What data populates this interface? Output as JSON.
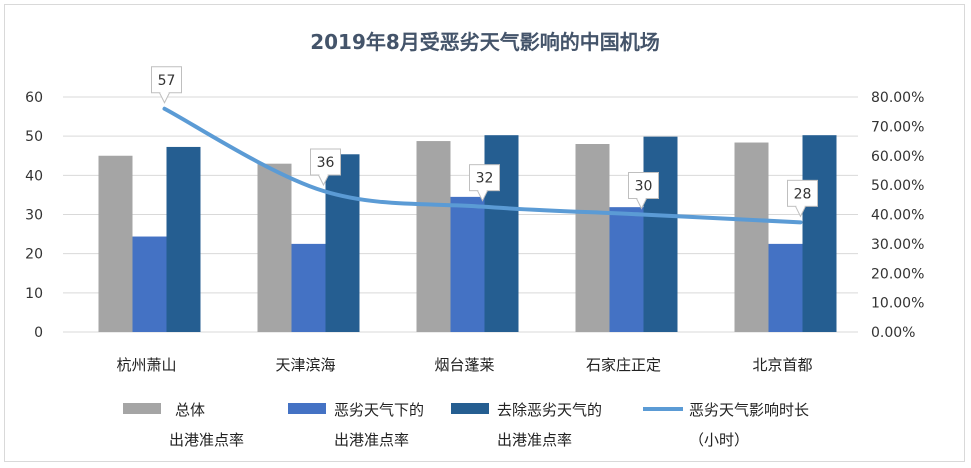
{
  "chart_data": {
    "type": "bar",
    "title": "2019年8月受恶劣天气影响的中国机场",
    "categories": [
      "杭州萧山",
      "天津滨海",
      "烟台蓬莱",
      "石家庄正定",
      "北京首都"
    ],
    "y_left": {
      "min": 0,
      "max": 60,
      "ticks": [
        0,
        10,
        20,
        30,
        40,
        50,
        60
      ]
    },
    "y_right": {
      "min": 0,
      "max": 0.8,
      "ticks": [
        "0.00%",
        "10.00%",
        "20.00%",
        "30.00%",
        "40.00%",
        "50.00%",
        "60.00%",
        "70.00%",
        "80.00%"
      ]
    },
    "series": [
      {
        "name_lines": [
          "总体",
          "出港准点率"
        ],
        "type": "bar",
        "axis": "right",
        "color": "#a5a5a5",
        "values": [
          0.6,
          0.573,
          0.65,
          0.64,
          0.645
        ]
      },
      {
        "name_lines": [
          "恶劣天气下的",
          "出港准点率"
        ],
        "type": "bar",
        "axis": "right",
        "color": "#4472c4",
        "values": [
          0.325,
          0.3,
          0.46,
          0.425,
          0.3
        ]
      },
      {
        "name_lines": [
          "去除恶劣天气的",
          "出港准点率"
        ],
        "type": "bar",
        "axis": "right",
        "color": "#255e91",
        "values": [
          0.63,
          0.605,
          0.67,
          0.665,
          0.67
        ]
      },
      {
        "name_lines": [
          "恶劣天气影响时长",
          "（小时）"
        ],
        "type": "line",
        "axis": "left",
        "color": "#5b9bd5",
        "values": [
          57,
          36,
          32,
          30,
          28
        ],
        "data_labels": [
          "57",
          "36",
          "32",
          "30",
          "28"
        ]
      }
    ],
    "grid": true,
    "legend_position": "bottom"
  }
}
